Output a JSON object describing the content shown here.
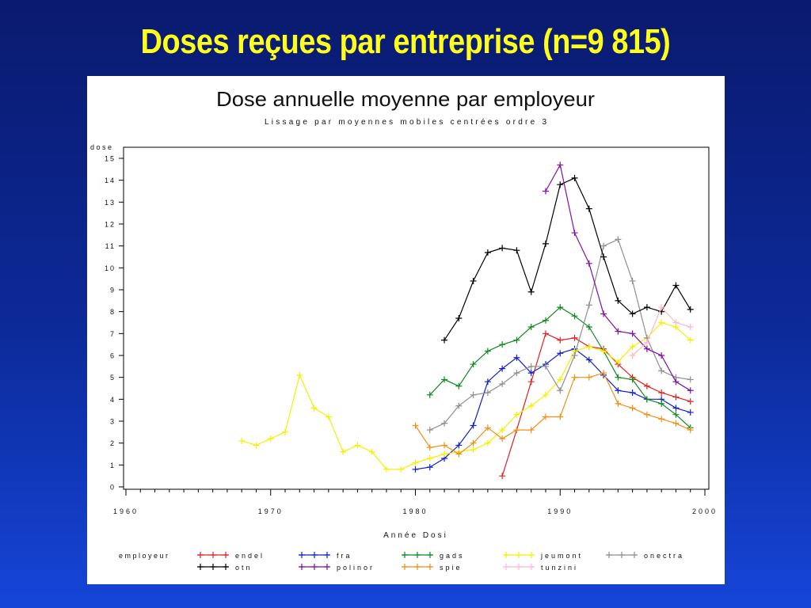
{
  "slide": {
    "title": "Doses reçues par entreprise (n=9 815)"
  },
  "chart_data": {
    "type": "line",
    "title": "Dose annuelle moyenne par employeur",
    "subtitle": "Lissage par moyennes mobiles centrées ordre 3",
    "ylabel": "dose",
    "xlabel": "Année Dosi",
    "xlim": [
      1960,
      2000
    ],
    "ylim": [
      0,
      15
    ],
    "xticks": [
      1960,
      1970,
      1980,
      1990,
      2000
    ],
    "yticks": [
      0,
      1,
      2,
      3,
      4,
      5,
      6,
      7,
      8,
      9,
      10,
      11,
      12,
      13,
      14,
      15
    ],
    "grid": false,
    "legend": {
      "title": "employeur",
      "placement": "bottom"
    },
    "series": [
      {
        "name": "endel",
        "color": "#e02020",
        "points": [
          [
            1986,
            0.5
          ],
          [
            1987,
            2.6
          ],
          [
            1988,
            4.8
          ],
          [
            1989,
            7.0
          ],
          [
            1990,
            6.7
          ],
          [
            1991,
            6.8
          ],
          [
            1992,
            6.4
          ],
          [
            1993,
            6.3
          ],
          [
            1994,
            5.6
          ],
          [
            1995,
            5.0
          ],
          [
            1996,
            4.6
          ],
          [
            1997,
            4.3
          ],
          [
            1998,
            4.1
          ],
          [
            1999,
            3.9
          ]
        ]
      },
      {
        "name": "fra",
        "color": "#1020d0",
        "points": [
          [
            1980,
            0.8
          ],
          [
            1981,
            0.9
          ],
          [
            1982,
            1.3
          ],
          [
            1983,
            1.9
          ],
          [
            1984,
            2.8
          ],
          [
            1985,
            4.8
          ],
          [
            1986,
            5.4
          ],
          [
            1987,
            5.9
          ],
          [
            1988,
            5.2
          ],
          [
            1989,
            5.6
          ],
          [
            1990,
            6.1
          ],
          [
            1991,
            6.3
          ],
          [
            1992,
            5.8
          ],
          [
            1993,
            5.1
          ],
          [
            1994,
            4.4
          ],
          [
            1995,
            4.3
          ],
          [
            1996,
            4.0
          ],
          [
            1997,
            4.0
          ],
          [
            1998,
            3.6
          ],
          [
            1999,
            3.4
          ]
        ]
      },
      {
        "name": "gads",
        "color": "#0e8a1e",
        "points": [
          [
            1981,
            4.2
          ],
          [
            1982,
            4.9
          ],
          [
            1983,
            4.6
          ],
          [
            1984,
            5.6
          ],
          [
            1985,
            6.2
          ],
          [
            1986,
            6.5
          ],
          [
            1987,
            6.7
          ],
          [
            1988,
            7.3
          ],
          [
            1989,
            7.6
          ],
          [
            1990,
            8.2
          ],
          [
            1991,
            7.8
          ],
          [
            1992,
            7.3
          ],
          [
            1993,
            6.2
          ],
          [
            1994,
            5.0
          ],
          [
            1995,
            4.9
          ],
          [
            1996,
            4.0
          ],
          [
            1997,
            3.8
          ],
          [
            1998,
            3.3
          ],
          [
            1999,
            2.7
          ]
        ]
      },
      {
        "name": "jeumont",
        "color": "#f5f000",
        "points": [
          [
            1968,
            2.1
          ],
          [
            1969,
            1.9
          ],
          [
            1970,
            2.2
          ],
          [
            1971,
            2.5
          ],
          [
            1972,
            5.1
          ],
          [
            1973,
            3.6
          ],
          [
            1974,
            3.2
          ],
          [
            1975,
            1.6
          ],
          [
            1976,
            1.9
          ],
          [
            1977,
            1.6
          ],
          [
            1978,
            0.8
          ],
          [
            1979,
            0.8
          ],
          [
            1980,
            1.1
          ],
          [
            1981,
            1.3
          ],
          [
            1982,
            1.5
          ],
          [
            1983,
            1.6
          ],
          [
            1984,
            1.7
          ],
          [
            1985,
            2.0
          ],
          [
            1986,
            2.6
          ],
          [
            1987,
            3.3
          ],
          [
            1988,
            3.7
          ],
          [
            1989,
            4.2
          ],
          [
            1990,
            4.9
          ],
          [
            1991,
            6.2
          ],
          [
            1992,
            6.4
          ],
          [
            1993,
            6.2
          ],
          [
            1994,
            5.7
          ],
          [
            1995,
            6.4
          ],
          [
            1996,
            6.8
          ],
          [
            1997,
            7.5
          ],
          [
            1998,
            7.3
          ],
          [
            1999,
            6.7
          ]
        ]
      },
      {
        "name": "onectra",
        "color": "#909090",
        "points": [
          [
            1981,
            2.6
          ],
          [
            1982,
            2.9
          ],
          [
            1983,
            3.7
          ],
          [
            1984,
            4.2
          ],
          [
            1985,
            4.3
          ],
          [
            1986,
            4.7
          ],
          [
            1987,
            5.2
          ],
          [
            1988,
            5.5
          ],
          [
            1989,
            5.5
          ],
          [
            1990,
            4.4
          ],
          [
            1991,
            6.0
          ],
          [
            1992,
            8.3
          ],
          [
            1993,
            11.0
          ],
          [
            1994,
            11.3
          ],
          [
            1995,
            9.4
          ],
          [
            1996,
            6.8
          ],
          [
            1997,
            5.3
          ],
          [
            1998,
            5.0
          ],
          [
            1999,
            4.9
          ]
        ]
      },
      {
        "name": "otn",
        "color": "#000000",
        "points": [
          [
            1982,
            6.7
          ],
          [
            1983,
            7.7
          ],
          [
            1984,
            9.4
          ],
          [
            1985,
            10.7
          ],
          [
            1986,
            10.9
          ],
          [
            1987,
            10.8
          ],
          [
            1988,
            8.9
          ],
          [
            1989,
            11.1
          ],
          [
            1990,
            13.8
          ],
          [
            1991,
            14.1
          ],
          [
            1992,
            12.7
          ],
          [
            1993,
            10.5
          ],
          [
            1994,
            8.5
          ],
          [
            1995,
            7.9
          ],
          [
            1996,
            8.2
          ],
          [
            1997,
            8.0
          ],
          [
            1998,
            9.2
          ],
          [
            1999,
            8.1
          ]
        ]
      },
      {
        "name": "polinor",
        "color": "#8010a0",
        "points": [
          [
            1989,
            13.5
          ],
          [
            1990,
            14.7
          ],
          [
            1991,
            11.6
          ],
          [
            1992,
            10.2
          ],
          [
            1993,
            7.9
          ],
          [
            1994,
            7.1
          ],
          [
            1995,
            7.0
          ],
          [
            1996,
            6.3
          ],
          [
            1997,
            6.0
          ],
          [
            1998,
            4.8
          ],
          [
            1999,
            4.4
          ]
        ]
      },
      {
        "name": "spie",
        "color": "#f09018",
        "points": [
          [
            1980,
            2.8
          ],
          [
            1981,
            1.8
          ],
          [
            1982,
            1.9
          ],
          [
            1983,
            1.5
          ],
          [
            1984,
            2.0
          ],
          [
            1985,
            2.7
          ],
          [
            1986,
            2.2
          ],
          [
            1987,
            2.6
          ],
          [
            1988,
            2.6
          ],
          [
            1989,
            3.2
          ],
          [
            1990,
            3.2
          ],
          [
            1991,
            5.0
          ],
          [
            1992,
            5.0
          ],
          [
            1993,
            5.2
          ],
          [
            1994,
            3.8
          ],
          [
            1995,
            3.6
          ],
          [
            1996,
            3.3
          ],
          [
            1997,
            3.1
          ],
          [
            1998,
            2.9
          ],
          [
            1999,
            2.6
          ]
        ]
      },
      {
        "name": "tunzini",
        "color": "#ffb8c8",
        "points": [
          [
            1995,
            6.0
          ],
          [
            1996,
            6.6
          ],
          [
            1997,
            8.2
          ],
          [
            1998,
            7.5
          ],
          [
            1999,
            7.3
          ]
        ]
      }
    ]
  }
}
